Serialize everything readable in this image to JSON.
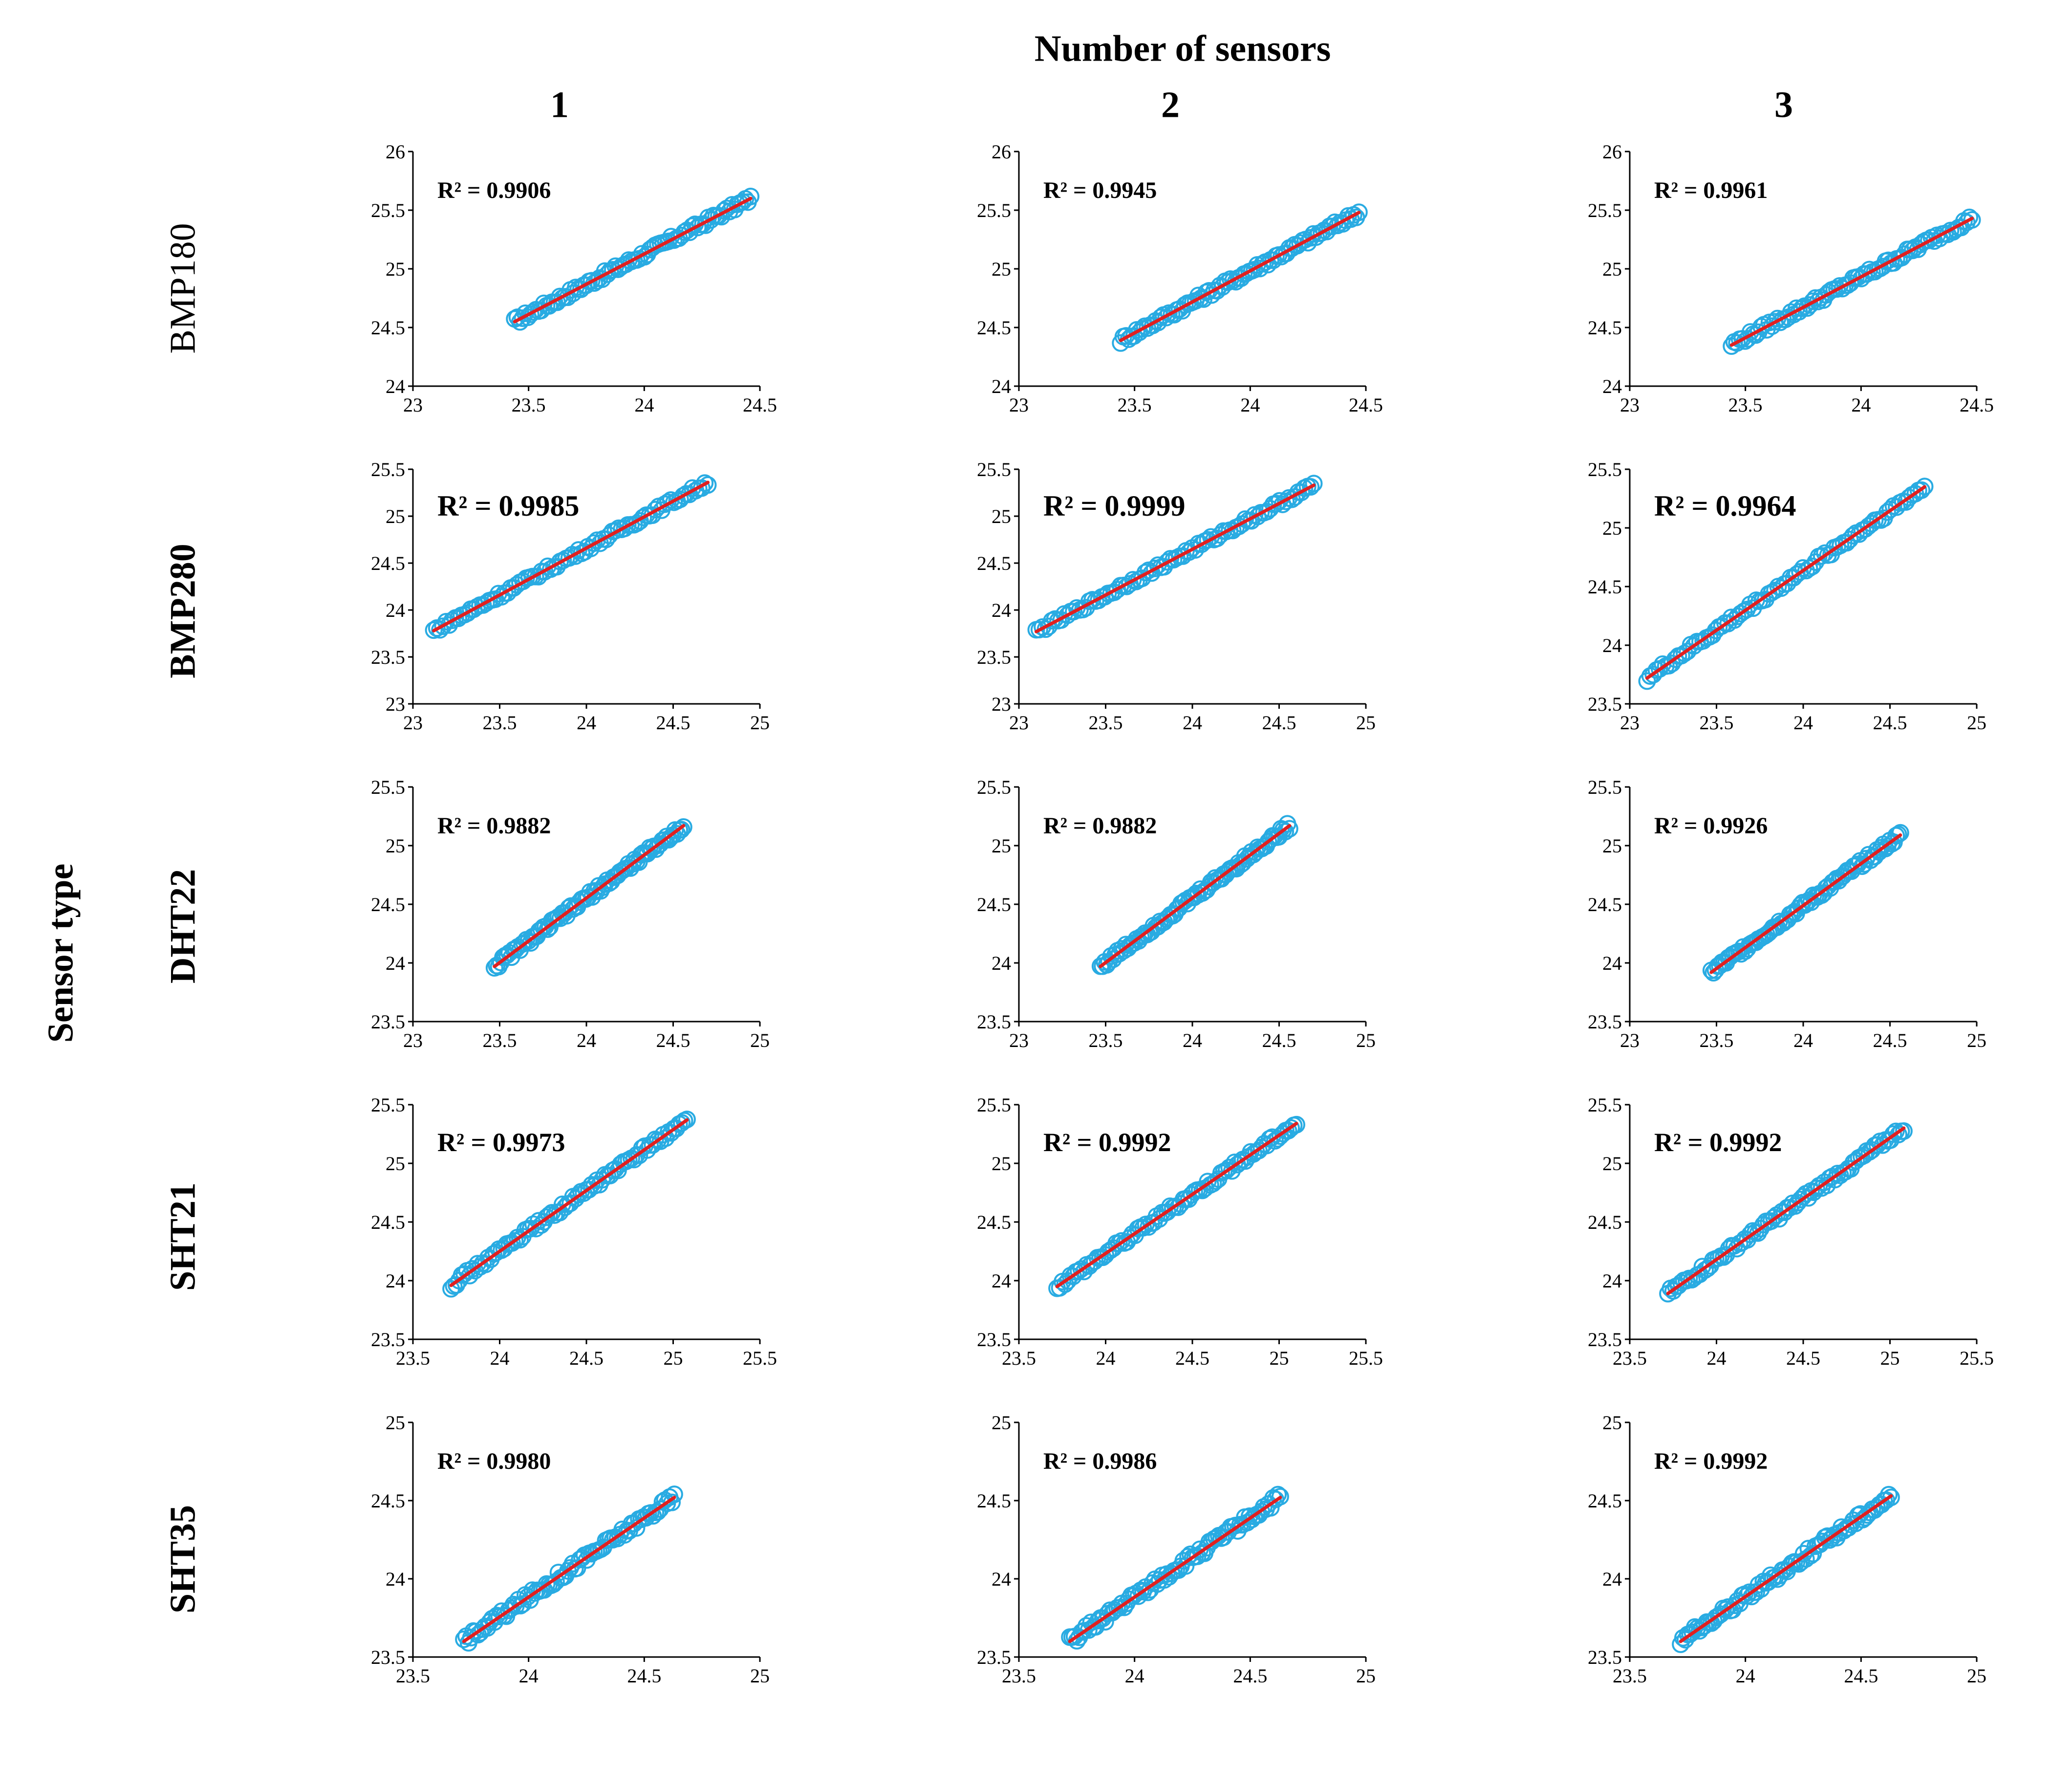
{
  "title": "Number of sensors",
  "row_axis_title": "Sensor type",
  "columns": [
    "1",
    "2",
    "3"
  ],
  "rows": [
    "BMP180",
    "BMP280",
    "DHT22",
    "SHT21",
    "SHT35"
  ],
  "colors": {
    "points": "#29abe2",
    "fit_line": "#e02020",
    "axes": "#000000"
  },
  "chart_data": [
    {
      "type": "scatter",
      "sensor": "BMP180",
      "sensors": 1,
      "r2": "R² = 0.9906",
      "xlim": [
        23,
        24.5
      ],
      "ylim": [
        24,
        26
      ],
      "xticks": [
        "23",
        "23.5",
        "24",
        "24.5"
      ],
      "yticks": [
        "24",
        "24.5",
        "25",
        "25.5",
        "26"
      ],
      "x_range": [
        23.44,
        24.46
      ],
      "fit": [
        [
          23.44,
          24.55
        ],
        [
          24.46,
          25.6
        ]
      ]
    },
    {
      "type": "scatter",
      "sensor": "BMP180",
      "sensors": 2,
      "r2": "R² = 0.9945",
      "xlim": [
        23,
        24.5
      ],
      "ylim": [
        24,
        26
      ],
      "xticks": [
        "23",
        "23.5",
        "24",
        "24.5"
      ],
      "yticks": [
        "24",
        "24.5",
        "25",
        "25.5",
        "26"
      ],
      "x_range": [
        23.44,
        24.47
      ],
      "fit": [
        [
          23.44,
          24.39
        ],
        [
          24.47,
          25.48
        ]
      ]
    },
    {
      "type": "scatter",
      "sensor": "BMP180",
      "sensors": 3,
      "r2": "R² = 0.9961",
      "xlim": [
        23,
        24.5
      ],
      "ylim": [
        24,
        26
      ],
      "xticks": [
        "23",
        "23.5",
        "24",
        "24.5"
      ],
      "yticks": [
        "24",
        "24.5",
        "25",
        "25.5",
        "26"
      ],
      "x_range": [
        23.44,
        24.48
      ],
      "fit": [
        [
          23.44,
          24.35
        ],
        [
          24.48,
          25.43
        ]
      ]
    },
    {
      "type": "scatter",
      "sensor": "BMP280",
      "sensors": 1,
      "r2": "R² = 0.9985",
      "xlim": [
        23,
        25
      ],
      "ylim": [
        23,
        25.5
      ],
      "xticks": [
        "23",
        "23.5",
        "24",
        "24.5",
        "25"
      ],
      "yticks": [
        "23",
        "23.5",
        "24",
        "24.5",
        "25",
        "25.5"
      ],
      "x_range": [
        23.12,
        24.7
      ],
      "fit": [
        [
          23.12,
          23.78
        ],
        [
          24.7,
          25.36
        ]
      ]
    },
    {
      "type": "scatter",
      "sensor": "BMP280",
      "sensors": 2,
      "r2": "R² = 0.9999",
      "xlim": [
        23,
        25
      ],
      "ylim": [
        23,
        25.5
      ],
      "xticks": [
        "23",
        "23.5",
        "24",
        "24.5",
        "25"
      ],
      "yticks": [
        "23",
        "23.5",
        "24",
        "24.5",
        "25",
        "25.5"
      ],
      "x_range": [
        23.1,
        24.7
      ],
      "fit": [
        [
          23.1,
          23.77
        ],
        [
          24.7,
          25.33
        ]
      ]
    },
    {
      "type": "scatter",
      "sensor": "BMP280",
      "sensors": 3,
      "r2": "R² = 0.9964",
      "xlim": [
        23,
        25
      ],
      "ylim": [
        23.5,
        25.5
      ],
      "xticks": [
        "23",
        "23.5",
        "24",
        "24.5",
        "25"
      ],
      "yticks": [
        "23.5",
        "24",
        "24.5",
        "25",
        "25.5"
      ],
      "x_range": [
        23.1,
        24.7
      ],
      "fit": [
        [
          23.1,
          23.72
        ],
        [
          24.7,
          25.35
        ]
      ]
    },
    {
      "type": "scatter",
      "sensor": "DHT22",
      "sensors": 1,
      "r2": "R² = 0.9882",
      "xlim": [
        23,
        25
      ],
      "ylim": [
        23.5,
        25.5
      ],
      "xticks": [
        "23",
        "23.5",
        "24",
        "24.5",
        "25"
      ],
      "yticks": [
        "23.5",
        "24",
        "24.5",
        "25",
        "25.5"
      ],
      "x_range": [
        23.47,
        24.56
      ],
      "fit": [
        [
          23.47,
          23.97
        ],
        [
          24.56,
          25.17
        ]
      ]
    },
    {
      "type": "scatter",
      "sensor": "DHT22",
      "sensors": 2,
      "r2": "R² = 0.9882",
      "xlim": [
        23,
        25
      ],
      "ylim": [
        23.5,
        25.5
      ],
      "xticks": [
        "23",
        "23.5",
        "24",
        "24.5",
        "25"
      ],
      "yticks": [
        "23.5",
        "24",
        "24.5",
        "25",
        "25.5"
      ],
      "x_range": [
        23.47,
        24.56
      ],
      "fit": [
        [
          23.47,
          23.97
        ],
        [
          24.56,
          25.17
        ]
      ]
    },
    {
      "type": "scatter",
      "sensor": "DHT22",
      "sensors": 3,
      "r2": "R² = 0.9926",
      "xlim": [
        23,
        25
      ],
      "ylim": [
        23.5,
        25.5
      ],
      "xticks": [
        "23",
        "23.5",
        "24",
        "24.5",
        "25"
      ],
      "yticks": [
        "23.5",
        "24",
        "24.5",
        "25",
        "25.5"
      ],
      "x_range": [
        23.47,
        24.56
      ],
      "fit": [
        [
          23.47,
          23.92
        ],
        [
          24.56,
          25.09
        ]
      ]
    },
    {
      "type": "scatter",
      "sensor": "SHT21",
      "sensors": 1,
      "r2": "R² = 0.9973",
      "xlim": [
        23.5,
        25.5
      ],
      "ylim": [
        23.5,
        25.5
      ],
      "xticks": [
        "23.5",
        "24",
        "24.5",
        "25",
        "25.5"
      ],
      "yticks": [
        "23.5",
        "24",
        "24.5",
        "25",
        "25.5"
      ],
      "x_range": [
        23.72,
        25.08
      ],
      "fit": [
        [
          23.72,
          23.96
        ],
        [
          25.08,
          25.37
        ]
      ]
    },
    {
      "type": "scatter",
      "sensor": "SHT21",
      "sensors": 2,
      "r2": "R² = 0.9992",
      "xlim": [
        23.5,
        25.5
      ],
      "ylim": [
        23.5,
        25.5
      ],
      "xticks": [
        "23.5",
        "24",
        "24.5",
        "25",
        "25.5"
      ],
      "yticks": [
        "23.5",
        "24",
        "24.5",
        "25",
        "25.5"
      ],
      "x_range": [
        23.72,
        25.1
      ],
      "fit": [
        [
          23.72,
          23.95
        ],
        [
          25.1,
          25.34
        ]
      ]
    },
    {
      "type": "scatter",
      "sensor": "SHT21",
      "sensors": 3,
      "r2": "R² = 0.9992",
      "xlim": [
        23.5,
        25.5
      ],
      "ylim": [
        23.5,
        25.5
      ],
      "xticks": [
        "23.5",
        "24",
        "24.5",
        "25",
        "25.5"
      ],
      "yticks": [
        "23.5",
        "24",
        "24.5",
        "25",
        "25.5"
      ],
      "x_range": [
        23.72,
        25.08
      ],
      "fit": [
        [
          23.72,
          23.89
        ],
        [
          25.08,
          25.3
        ]
      ]
    },
    {
      "type": "scatter",
      "sensor": "SHT35",
      "sensors": 1,
      "r2": "R² = 0.9980",
      "xlim": [
        23.5,
        25
      ],
      "ylim": [
        23.5,
        25
      ],
      "xticks": [
        "23.5",
        "24",
        "24.5",
        "25"
      ],
      "yticks": [
        "23.5",
        "24",
        "24.5",
        "25"
      ],
      "x_range": [
        23.72,
        24.63
      ],
      "fit": [
        [
          23.72,
          23.6
        ],
        [
          24.63,
          24.52
        ]
      ]
    },
    {
      "type": "scatter",
      "sensor": "SHT35",
      "sensors": 2,
      "r2": "R² = 0.9986",
      "xlim": [
        23.5,
        25
      ],
      "ylim": [
        23.5,
        25
      ],
      "xticks": [
        "23.5",
        "24",
        "24.5",
        "25"
      ],
      "yticks": [
        "23.5",
        "24",
        "24.5",
        "25"
      ],
      "x_range": [
        23.72,
        24.63
      ],
      "fit": [
        [
          23.72,
          23.6
        ],
        [
          24.63,
          24.52
        ]
      ]
    },
    {
      "type": "scatter",
      "sensor": "SHT35",
      "sensors": 3,
      "r2": "R² = 0.9992",
      "xlim": [
        23.5,
        25
      ],
      "ylim": [
        23.5,
        25
      ],
      "xticks": [
        "23.5",
        "24",
        "24.5",
        "25"
      ],
      "yticks": [
        "23.5",
        "24",
        "24.5",
        "25"
      ],
      "x_range": [
        23.72,
        24.63
      ],
      "fit": [
        [
          23.72,
          23.6
        ],
        [
          24.63,
          24.53
        ]
      ]
    }
  ]
}
